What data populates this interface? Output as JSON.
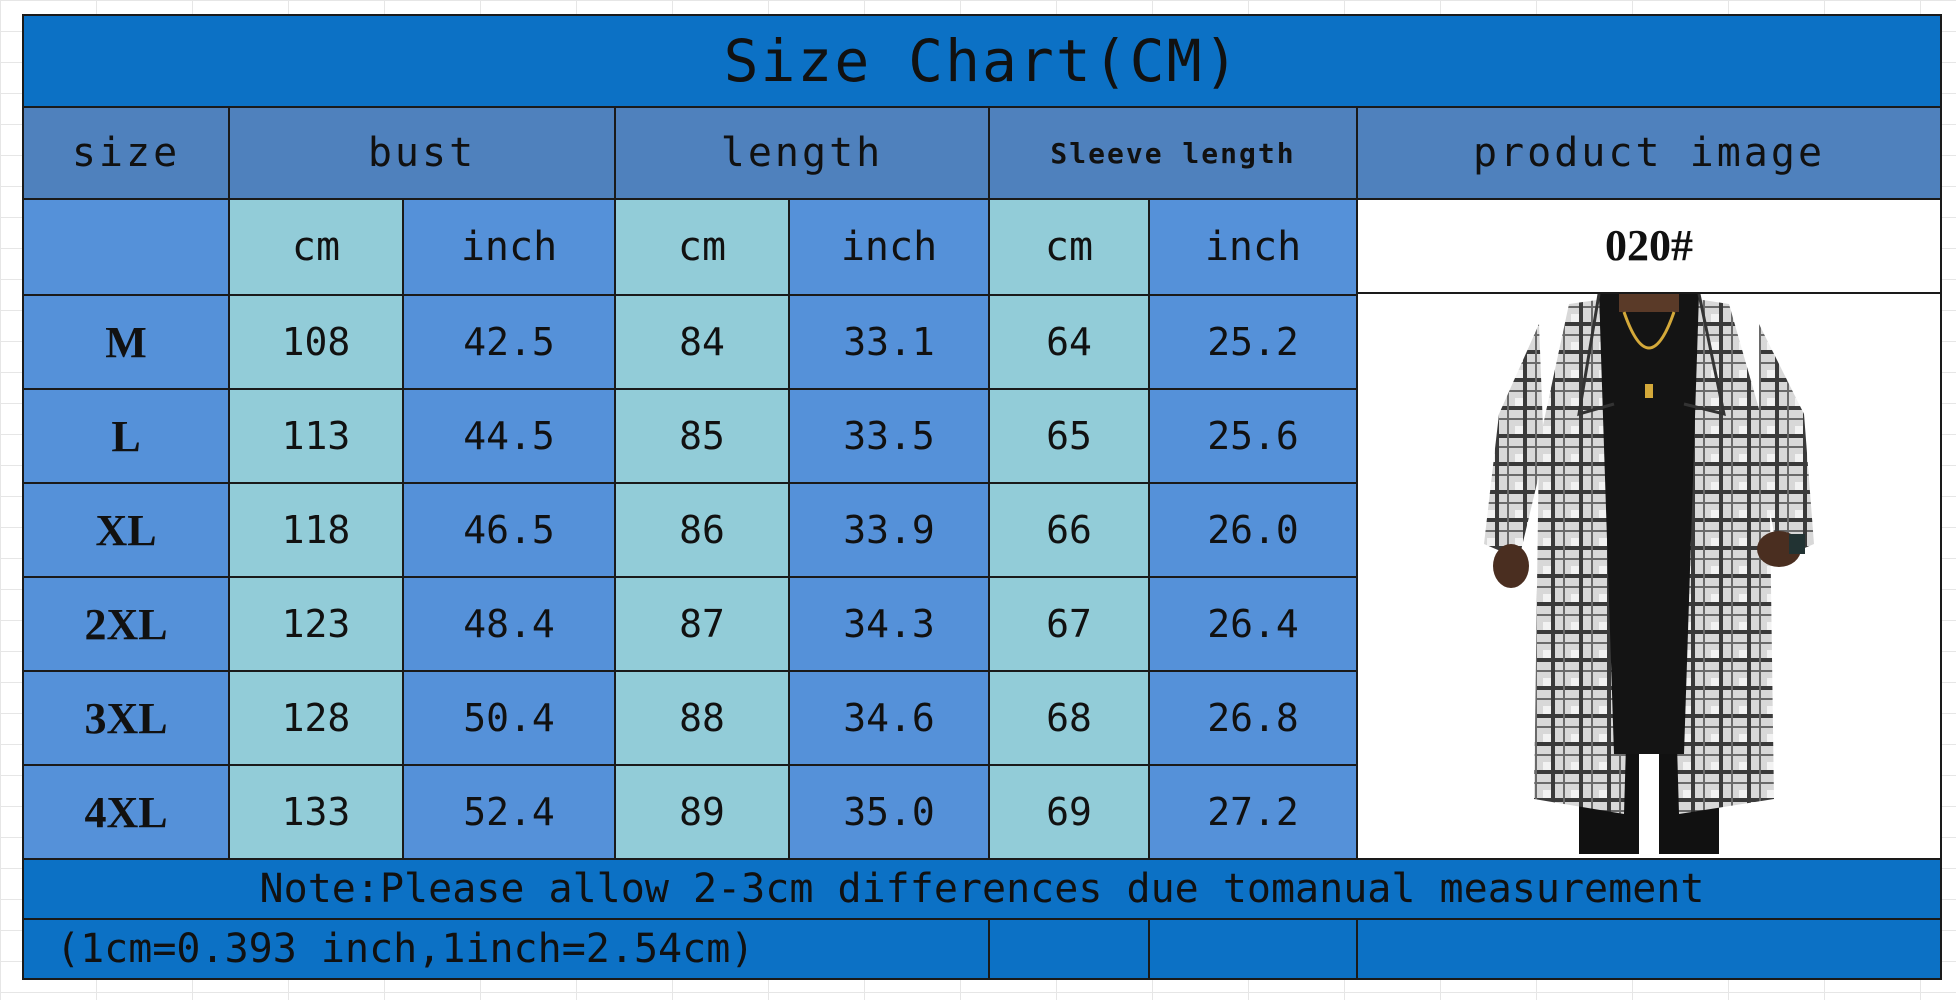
{
  "title": "Size Chart(CM)",
  "headers": {
    "size": "size",
    "bust": "bust",
    "length": "length",
    "sleeve": "Sleeve length",
    "image": "product image"
  },
  "units": [
    "cm",
    "inch",
    "cm",
    "inch",
    "cm",
    "inch"
  ],
  "rows": [
    {
      "size": "M",
      "bust_cm": "108",
      "bust_in": "42.5",
      "len_cm": "84",
      "len_in": "33.1",
      "slv_cm": "64",
      "slv_in": "25.2"
    },
    {
      "size": "L",
      "bust_cm": "113",
      "bust_in": "44.5",
      "len_cm": "85",
      "len_in": "33.5",
      "slv_cm": "65",
      "slv_in": "25.6"
    },
    {
      "size": "XL",
      "bust_cm": "118",
      "bust_in": "46.5",
      "len_cm": "86",
      "len_in": "33.9",
      "slv_cm": "66",
      "slv_in": "26.0"
    },
    {
      "size": "2XL",
      "bust_cm": "123",
      "bust_in": "48.4",
      "len_cm": "87",
      "len_in": "34.3",
      "slv_cm": "67",
      "slv_in": "26.4"
    },
    {
      "size": "3XL",
      "bust_cm": "128",
      "bust_in": "50.4",
      "len_cm": "88",
      "len_in": "34.6",
      "slv_cm": "68",
      "slv_in": "26.8"
    },
    {
      "size": "4XL",
      "bust_cm": "133",
      "bust_in": "52.4",
      "len_cm": "89",
      "len_in": "35.0",
      "slv_cm": "69",
      "slv_in": "27.2"
    }
  ],
  "product_code": "020#",
  "note": "Note:Please allow 2-3cm differences due tomanual measurement",
  "conversion": "(1cm=0.393 inch,1inch=2.54cm)",
  "colors": {
    "title_bg": "#0c71c5",
    "header_bg": "#4f81bd",
    "cell_blue": "#5591d9",
    "cell_light": "#92ccd8"
  }
}
